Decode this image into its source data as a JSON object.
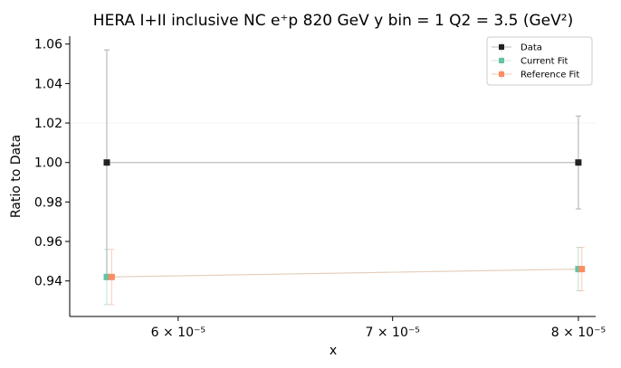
{
  "chart_data": {
    "type": "line",
    "title": "HERA I+II inclusive NC e⁺p 820 GeV y bin = 1 Q2 = 3.5 (GeV²)",
    "xlabel": "x",
    "ylabel": "Ratio to Data",
    "x_scale": "log",
    "x_ticks": [
      {
        "value": 6e-05,
        "label": "6 × 10⁻⁵"
      },
      {
        "value": 7e-05,
        "label": "7 × 10⁻⁵"
      },
      {
        "value": 8e-05,
        "label": "8 × 10⁻⁵"
      }
    ],
    "y_ticks": [
      0.94,
      0.96,
      0.98,
      1.0,
      1.02,
      1.04,
      1.06
    ],
    "y_tick_labels": [
      "0.94",
      "0.96",
      "0.98",
      "1.00",
      "1.02",
      "1.04",
      "1.06"
    ],
    "xlim": [
      5.55e-05,
      8.1e-05
    ],
    "ylim": [
      0.922,
      1.064
    ],
    "legend_position": "top-right",
    "grid": false,
    "series": [
      {
        "name": "Data",
        "color": "#222222",
        "line_color": "#bbbbbb",
        "marker": "square",
        "x": [
          5.7e-05,
          8e-05
        ],
        "y": [
          1.0,
          1.0
        ],
        "yerr": [
          0.057,
          0.0235
        ]
      },
      {
        "name": "Current Fit",
        "color": "#66c2a5",
        "marker": "square",
        "x": [
          5.7e-05,
          8e-05
        ],
        "y": [
          0.942,
          0.946
        ],
        "yerr": [
          0.014,
          0.011
        ]
      },
      {
        "name": "Reference Fit",
        "color": "#fc8d62",
        "marker": "square",
        "x": [
          5.72e-05,
          8.02e-05
        ],
        "y": [
          0.942,
          0.946
        ],
        "yerr": [
          0.014,
          0.011
        ]
      }
    ]
  }
}
